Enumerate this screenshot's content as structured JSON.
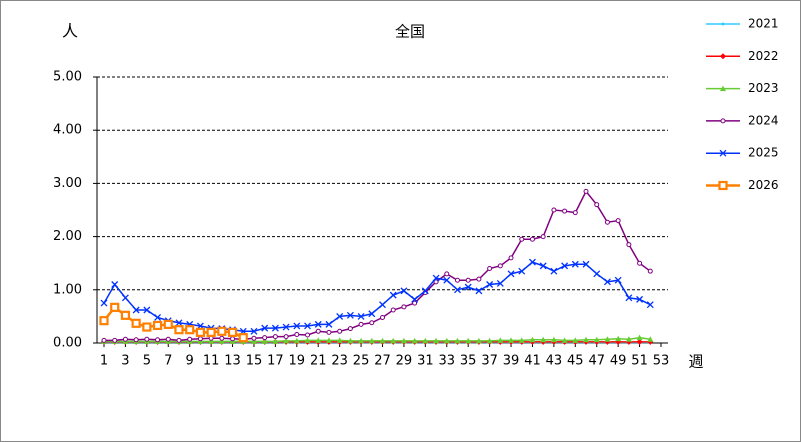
{
  "chart_data": {
    "type": "line",
    "title": "全国",
    "y_label": "人",
    "x_label": "週",
    "x": [
      1,
      2,
      3,
      4,
      5,
      6,
      7,
      8,
      9,
      10,
      11,
      12,
      13,
      14,
      15,
      16,
      17,
      18,
      19,
      20,
      21,
      22,
      23,
      24,
      25,
      26,
      27,
      28,
      29,
      30,
      31,
      32,
      33,
      34,
      35,
      36,
      37,
      38,
      39,
      40,
      41,
      42,
      43,
      44,
      45,
      46,
      47,
      48,
      49,
      50,
      51,
      52
    ],
    "xlim": [
      1,
      53
    ],
    "xticks": [
      1,
      3,
      5,
      7,
      9,
      11,
      13,
      15,
      17,
      19,
      21,
      23,
      25,
      27,
      29,
      31,
      33,
      35,
      37,
      39,
      41,
      43,
      45,
      47,
      49,
      51,
      53
    ],
    "ylim": [
      0,
      5
    ],
    "yticks": [
      {
        "value": 0,
        "label": "0.00"
      },
      {
        "value": 1,
        "label": "1.00"
      },
      {
        "value": 2,
        "label": "2.00"
      },
      {
        "value": 3,
        "label": "3.00"
      },
      {
        "value": 4,
        "label": "4.00"
      },
      {
        "value": 5,
        "label": "5.00"
      }
    ],
    "grid": true,
    "legend": "right",
    "series": [
      {
        "name": "2021",
        "color": "#33ccff",
        "marker": "dot",
        "values": [
          0.01,
          0.01,
          0.01,
          0.01,
          0.01,
          0.01,
          0.01,
          0.01,
          0.01,
          0.01,
          0.01,
          0.01,
          0.01,
          0.01,
          0.01,
          0.01,
          0.01,
          0.01,
          0.01,
          0.01,
          0.01,
          0.01,
          0.01,
          0.01,
          0.01,
          0.01,
          0.01,
          0.01,
          0.01,
          0.01,
          0.01,
          0.01,
          0.01,
          0.01,
          0.01,
          0.01,
          0.01,
          0.01,
          0.01,
          0.01,
          0.01,
          0.01,
          0.01,
          0.01,
          0.01,
          0.01,
          0.01,
          0.01,
          0.01,
          0.01,
          0.01,
          0.01
        ]
      },
      {
        "name": "2022",
        "color": "#ff0000",
        "marker": "diamond",
        "values": [
          0.02,
          0.02,
          0.02,
          0.02,
          0.02,
          0.02,
          0.02,
          0.02,
          0.02,
          0.02,
          0.02,
          0.02,
          0.02,
          0.02,
          0.02,
          0.02,
          0.02,
          0.02,
          0.02,
          0.02,
          0.02,
          0.02,
          0.02,
          0.02,
          0.02,
          0.02,
          0.02,
          0.02,
          0.02,
          0.02,
          0.02,
          0.02,
          0.02,
          0.02,
          0.02,
          0.02,
          0.02,
          0.02,
          0.02,
          0.02,
          0.02,
          0.02,
          0.02,
          0.02,
          0.02,
          0.02,
          0.02,
          0.02,
          0.02,
          0.02,
          0.02,
          0.02
        ]
      },
      {
        "name": "2023",
        "color": "#66cc33",
        "marker": "triangle",
        "values": [
          0.03,
          0.03,
          0.03,
          0.03,
          0.03,
          0.03,
          0.03,
          0.03,
          0.03,
          0.03,
          0.03,
          0.03,
          0.03,
          0.03,
          0.03,
          0.03,
          0.03,
          0.04,
          0.04,
          0.05,
          0.05,
          0.05,
          0.05,
          0.04,
          0.04,
          0.04,
          0.04,
          0.04,
          0.04,
          0.04,
          0.04,
          0.04,
          0.04,
          0.04,
          0.04,
          0.04,
          0.04,
          0.05,
          0.05,
          0.05,
          0.06,
          0.06,
          0.06,
          0.05,
          0.05,
          0.06,
          0.06,
          0.07,
          0.08,
          0.07,
          0.1,
          0.07
        ]
      },
      {
        "name": "2024",
        "color": "#800080",
        "marker": "circle",
        "values": [
          0.05,
          0.05,
          0.07,
          0.06,
          0.07,
          0.06,
          0.07,
          0.05,
          0.07,
          0.08,
          0.09,
          0.09,
          0.08,
          0.07,
          0.09,
          0.1,
          0.12,
          0.12,
          0.16,
          0.15,
          0.22,
          0.2,
          0.22,
          0.27,
          0.35,
          0.38,
          0.48,
          0.62,
          0.68,
          0.75,
          0.95,
          1.15,
          1.3,
          1.18,
          1.18,
          1.2,
          1.4,
          1.45,
          1.6,
          1.95,
          1.95,
          2.0,
          2.5,
          2.48,
          2.45,
          2.85,
          2.6,
          2.27,
          2.3,
          1.85,
          1.5,
          1.35
        ]
      },
      {
        "name": "2025",
        "color": "#0033ff",
        "marker": "cross",
        "values": [
          0.75,
          1.1,
          0.85,
          0.62,
          0.62,
          0.48,
          0.42,
          0.38,
          0.35,
          0.32,
          0.28,
          0.27,
          0.25,
          0.22,
          0.22,
          0.28,
          0.28,
          0.3,
          0.32,
          0.32,
          0.35,
          0.35,
          0.5,
          0.52,
          0.5,
          0.55,
          0.72,
          0.9,
          0.98,
          0.82,
          0.98,
          1.22,
          1.18,
          1.0,
          1.05,
          0.98,
          1.1,
          1.12,
          1.3,
          1.35,
          1.52,
          1.45,
          1.35,
          1.45,
          1.48,
          1.48,
          1.3,
          1.15,
          1.18,
          0.85,
          0.82,
          0.72
        ]
      },
      {
        "name": "2026",
        "color": "#ff8000",
        "marker": "square",
        "values": [
          0.42,
          0.67,
          0.52,
          0.37,
          0.3,
          0.33,
          0.35,
          0.25,
          0.25,
          0.2,
          0.2,
          0.22,
          0.2,
          0.1,
          null,
          null,
          null,
          null,
          null,
          null,
          null,
          null,
          null,
          null,
          null,
          null,
          null,
          null,
          null,
          null,
          null,
          null,
          null,
          null,
          null,
          null,
          null,
          null,
          null,
          null,
          null,
          null,
          null,
          null,
          null,
          null,
          null,
          null,
          null,
          null,
          null,
          null
        ]
      }
    ]
  }
}
